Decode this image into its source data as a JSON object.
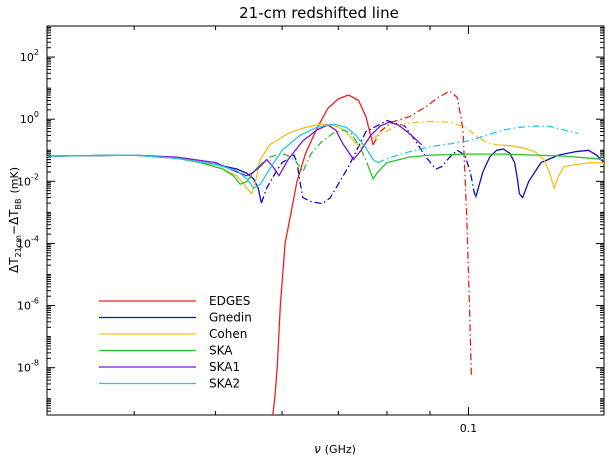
{
  "chart_data": {
    "type": "line",
    "title": "21-cm redshifted line",
    "xlabel": {
      "symbol": "ν",
      "unit": "(GHz)"
    },
    "ylabel": {
      "prefix": "ΔT",
      "sub1": "21cm",
      "mid": "−ΔT",
      "sub2": "BB",
      "unit": "(mK)"
    },
    "xscale": "log",
    "yscale": "log",
    "xlim": [
      0.0315,
      0.145
    ],
    "ylim": [
      3e-10,
      1000
    ],
    "x_ticks": [
      {
        "value": 0.1,
        "label": "0.1"
      }
    ],
    "y_ticks": [
      {
        "value": 1e-08,
        "base": "10",
        "exp": "-8"
      },
      {
        "value": 1e-06,
        "base": "10",
        "exp": "-6"
      },
      {
        "value": 0.0001,
        "base": "10",
        "exp": "-4"
      },
      {
        "value": 0.01,
        "base": "10",
        "exp": "-2"
      },
      {
        "value": 1,
        "base": "10",
        "exp": "0"
      },
      {
        "value": 100,
        "base": "10",
        "exp": "2"
      }
    ],
    "grid": false,
    "legend_position": "bottom-left",
    "series": [
      {
        "name": "EDGES",
        "color": "#ee2020",
        "segments": [
          {
            "dash": "solid",
            "points": [
              [
                0.0585,
                3e-10
              ],
              [
                0.0588,
                1e-09
              ],
              [
                0.0592,
                1e-08
              ],
              [
                0.0597,
                1e-06
              ],
              [
                0.0605,
                0.0001
              ],
              [
                0.0615,
                0.001
              ],
              [
                0.0625,
                0.01
              ],
              [
                0.064,
                0.08
              ],
              [
                0.066,
                0.5
              ],
              [
                0.068,
                2.2
              ],
              [
                0.07,
                4.5
              ],
              [
                0.072,
                6
              ],
              [
                0.074,
                4
              ],
              [
                0.0755,
                1.2
              ],
              [
                0.077,
                0.15
              ]
            ]
          },
          {
            "dash": "dashdot",
            "points": [
              [
                0.077,
                0.15
              ],
              [
                0.0785,
                0.4
              ],
              [
                0.081,
                0.8
              ],
              [
                0.085,
                1.2
              ],
              [
                0.089,
                2.5
              ],
              [
                0.092,
                5
              ],
              [
                0.095,
                8
              ],
              [
                0.097,
                5
              ],
              [
                0.0985,
                0.5
              ],
              [
                0.0995,
                0.001
              ],
              [
                0.1003,
                1e-06
              ],
              [
                0.1008,
                5e-09
              ]
            ]
          }
        ]
      },
      {
        "name": "Gnedin",
        "color": "#1010bb",
        "segments": [
          {
            "dash": "solid",
            "points": [
              [
                0.0315,
                0.065
              ],
              [
                0.04,
                0.07
              ],
              [
                0.045,
                0.055
              ],
              [
                0.05,
                0.035
              ],
              [
                0.053,
                0.025
              ],
              [
                0.0545,
                0.018
              ],
              [
                0.0555,
                0.012
              ],
              [
                0.0562,
                0.006
              ],
              [
                0.0567,
                0.002
              ]
            ]
          },
          {
            "dash": "dashdot",
            "points": [
              [
                0.0567,
                0.002
              ],
              [
                0.0575,
                0.006
              ],
              [
                0.059,
                0.02
              ],
              [
                0.06,
                0.04
              ],
              [
                0.062,
                0.07
              ],
              [
                0.0625,
                0.04
              ],
              [
                0.063,
                0.01
              ],
              [
                0.0635,
                0.003
              ],
              [
                0.065,
                0.0022
              ],
              [
                0.067,
                0.0019
              ],
              [
                0.0685,
                0.003
              ],
              [
                0.072,
                0.03
              ],
              [
                0.0755,
                0.4
              ],
              [
                0.08,
                0.9
              ],
              [
                0.084,
                0.6
              ],
              [
                0.0865,
                0.2
              ],
              [
                0.089,
                0.06
              ],
              [
                0.0915,
                0.025
              ],
              [
                0.093,
                0.03
              ],
              [
                0.095,
                0.06
              ],
              [
                0.097,
                0.1
              ],
              [
                0.099,
                0.07
              ],
              [
                0.1005,
                0.02
              ],
              [
                0.1015,
                0.005
              ],
              [
                0.102,
                0.003
              ]
            ]
          },
          {
            "dash": "solid",
            "points": [
              [
                0.102,
                0.003
              ],
              [
                0.104,
                0.02
              ],
              [
                0.106,
                0.06
              ],
              [
                0.108,
                0.1
              ],
              [
                0.11,
                0.11
              ],
              [
                0.112,
                0.08
              ],
              [
                0.1135,
                0.04
              ],
              [
                0.1145,
                0.01
              ],
              [
                0.115,
                0.004
              ],
              [
                0.116,
                0.003
              ],
              [
                0.118,
                0.01
              ],
              [
                0.122,
                0.04
              ],
              [
                0.128,
                0.07
              ],
              [
                0.134,
                0.09
              ],
              [
                0.139,
                0.1
              ],
              [
                0.142,
                0.07
              ],
              [
                0.145,
                0.04
              ]
            ]
          }
        ]
      },
      {
        "name": "Cohen",
        "color": "#f2c01c",
        "segments": [
          {
            "dash": "solid",
            "points": [
              [
                0.0315,
                0.065
              ],
              [
                0.04,
                0.07
              ],
              [
                0.045,
                0.055
              ],
              [
                0.048,
                0.04
              ],
              [
                0.051,
                0.025
              ],
              [
                0.053,
                0.015
              ],
              [
                0.0545,
                0.006
              ],
              [
                0.0552,
                0.004
              ],
              [
                0.0558,
                0.01
              ],
              [
                0.0565,
                0.05
              ],
              [
                0.058,
                0.15
              ],
              [
                0.061,
                0.35
              ],
              [
                0.064,
                0.55
              ],
              [
                0.067,
                0.7
              ],
              [
                0.0695,
                0.6
              ],
              [
                0.0715,
                0.4
              ],
              [
                0.073,
                0.2
              ],
              [
                0.0745,
                0.12
              ]
            ]
          },
          {
            "dash": "dashdot",
            "points": [
              [
                0.0745,
                0.12
              ],
              [
                0.076,
                0.2
              ],
              [
                0.078,
                0.3
              ],
              [
                0.081,
                0.5
              ],
              [
                0.085,
                0.75
              ],
              [
                0.09,
                0.85
              ],
              [
                0.095,
                0.8
              ],
              [
                0.099,
                0.55
              ],
              [
                0.102,
                0.3
              ],
              [
                0.105,
                0.18
              ],
              [
                0.108,
                0.15
              ]
            ]
          },
          {
            "dash": "solid",
            "points": [
              [
                0.108,
                0.15
              ],
              [
                0.112,
                0.14
              ],
              [
                0.116,
                0.12
              ],
              [
                0.12,
                0.09
              ],
              [
                0.123,
                0.05
              ],
              [
                0.125,
                0.018
              ],
              [
                0.1265,
                0.006
              ],
              [
                0.128,
                0.015
              ],
              [
                0.13,
                0.03
              ],
              [
                0.135,
                0.035
              ],
              [
                0.14,
                0.04
              ],
              [
                0.145,
                0.04
              ]
            ]
          }
        ]
      },
      {
        "name": "SKA",
        "color": "#27c227",
        "segments": [
          {
            "dash": "solid",
            "points": [
              [
                0.0315,
                0.065
              ],
              [
                0.04,
                0.07
              ],
              [
                0.045,
                0.055
              ],
              [
                0.048,
                0.04
              ],
              [
                0.051,
                0.025
              ],
              [
                0.0525,
                0.015
              ],
              [
                0.0535,
                0.008
              ],
              [
                0.0545,
                0.01
              ],
              [
                0.0555,
                0.02
              ],
              [
                0.0562,
                0.03
              ]
            ]
          },
          {
            "dash": "dashdot",
            "points": [
              [
                0.0562,
                0.03
              ],
              [
                0.058,
                0.06
              ],
              [
                0.06,
                0.08
              ],
              [
                0.0615,
                0.06
              ],
              [
                0.0625,
                0.04
              ],
              [
                0.0635,
                0.02
              ],
              [
                0.065,
                0.08
              ],
              [
                0.067,
                0.2
              ],
              [
                0.069,
                0.35
              ],
              [
                0.071,
                0.45
              ],
              [
                0.0725,
                0.35
              ],
              [
                0.074,
                0.15
              ],
              [
                0.0755,
                0.05
              ],
              [
                0.076,
                0.03
              ]
            ]
          },
          {
            "dash": "solid",
            "points": [
              [
                0.076,
                0.03
              ],
              [
                0.077,
                0.012
              ],
              [
                0.078,
                0.02
              ],
              [
                0.08,
                0.04
              ],
              [
                0.085,
                0.06
              ],
              [
                0.09,
                0.07
              ],
              [
                0.1,
                0.075
              ],
              [
                0.11,
                0.075
              ],
              [
                0.12,
                0.07
              ],
              [
                0.13,
                0.065
              ],
              [
                0.14,
                0.055
              ],
              [
                0.145,
                0.05
              ]
            ]
          }
        ]
      },
      {
        "name": "SKA1",
        "color": "#7a18c8",
        "segments": [
          {
            "dash": "solid",
            "points": [
              [
                0.0315,
                0.065
              ],
              [
                0.04,
                0.07
              ],
              [
                0.045,
                0.06
              ],
              [
                0.05,
                0.04
              ],
              [
                0.053,
                0.02
              ],
              [
                0.0545,
                0.015
              ],
              [
                0.0555,
                0.02
              ],
              [
                0.0565,
                0.03
              ],
              [
                0.0575,
                0.05
              ],
              [
                0.0585,
                0.03
              ],
              [
                0.0595,
                0.015
              ],
              [
                0.061,
                0.05
              ],
              [
                0.0635,
                0.2
              ],
              [
                0.066,
                0.45
              ],
              [
                0.068,
                0.65
              ],
              [
                0.0695,
                0.45
              ],
              [
                0.071,
                0.15
              ],
              [
                0.073,
                0.05
              ],
              [
                0.0745,
                0.1
              ],
              [
                0.0765,
                0.3
              ],
              [
                0.0785,
                0.6
              ],
              [
                0.0805,
                0.8
              ],
              [
                0.0825,
                0.65
              ],
              [
                0.085,
                0.35
              ],
              [
                0.088,
                0.15
              ]
            ]
          }
        ]
      },
      {
        "name": "SKA2",
        "color": "#27c8d8",
        "segments": [
          {
            "dash": "solid",
            "points": [
              [
                0.0315,
                0.065
              ],
              [
                0.04,
                0.07
              ],
              [
                0.045,
                0.055
              ],
              [
                0.05,
                0.035
              ],
              [
                0.053,
                0.022
              ],
              [
                0.0545,
                0.012
              ],
              [
                0.0555,
                0.006
              ],
              [
                0.0565,
                0.008
              ],
              [
                0.058,
                0.025
              ],
              [
                0.06,
                0.1
              ],
              [
                0.063,
                0.3
              ],
              [
                0.066,
                0.55
              ],
              [
                0.069,
                0.7
              ],
              [
                0.0715,
                0.55
              ],
              [
                0.0735,
                0.3
              ],
              [
                0.0755,
                0.12
              ],
              [
                0.077,
                0.05
              ],
              [
                0.078,
                0.04
              ]
            ]
          },
          {
            "dash": "dashdot",
            "points": [
              [
                0.078,
                0.04
              ],
              [
                0.081,
                0.06
              ],
              [
                0.085,
                0.09
              ],
              [
                0.09,
                0.13
              ],
              [
                0.095,
                0.16
              ],
              [
                0.1,
                0.2
              ],
              [
                0.105,
                0.3
              ],
              [
                0.11,
                0.45
              ],
              [
                0.115,
                0.55
              ],
              [
                0.12,
                0.6
              ],
              [
                0.125,
                0.58
              ],
              [
                0.13,
                0.45
              ],
              [
                0.135,
                0.35
              ]
            ]
          }
        ]
      }
    ]
  }
}
